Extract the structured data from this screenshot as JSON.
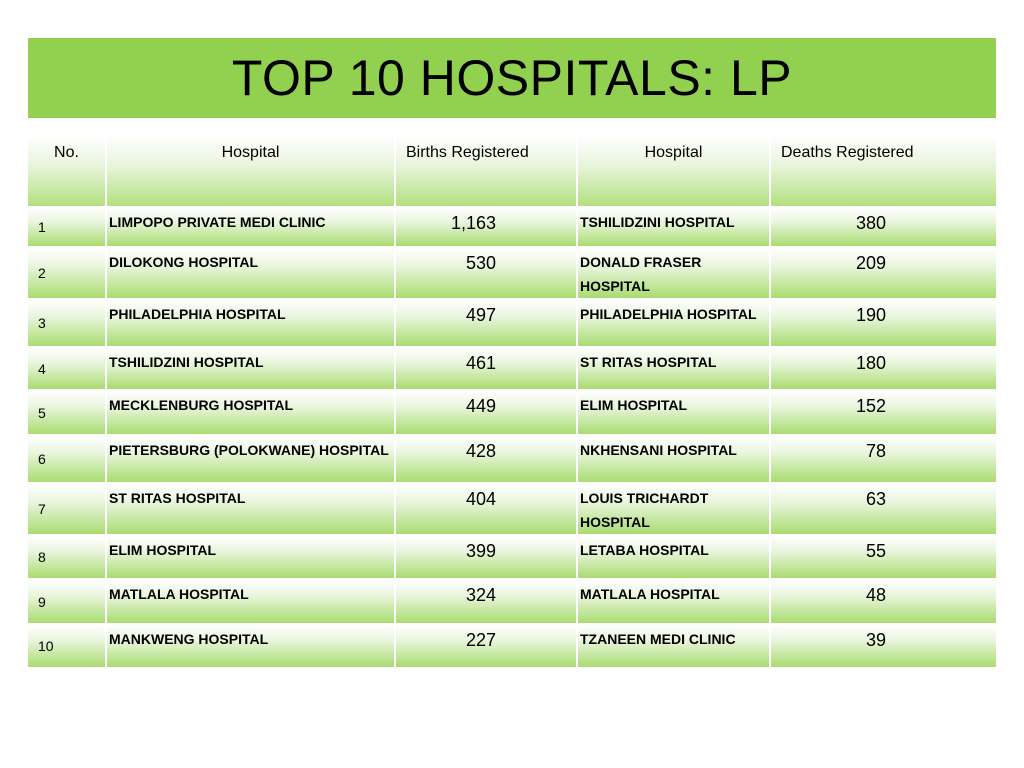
{
  "title": "TOP 10 HOSPITALS: LP",
  "colors": {
    "title_bar": "#92d050",
    "row_gradient_bottom": "#a9dc70"
  },
  "table": {
    "headers": [
      "No.",
      "Hospital",
      "Births Registered",
      "Hospital",
      "Deaths Registered"
    ],
    "rows": [
      {
        "no": "1",
        "birth_hospital": "LIMPOPO PRIVATE MEDI CLINIC",
        "births": "1,163",
        "death_hospital": "TSHILIDZINI HOSPITAL",
        "deaths": "380"
      },
      {
        "no": "2",
        "birth_hospital": "DILOKONG HOSPITAL",
        "births": "530",
        "death_hospital": "DONALD FRASER HOSPITAL",
        "deaths": "209"
      },
      {
        "no": "3",
        "birth_hospital": "PHILADELPHIA HOSPITAL",
        "births": "497",
        "death_hospital": "PHILADELPHIA HOSPITAL",
        "deaths": "190"
      },
      {
        "no": "4",
        "birth_hospital": "TSHILIDZINI HOSPITAL",
        "births": "461",
        "death_hospital": "ST RITAS HOSPITAL",
        "deaths": "180"
      },
      {
        "no": "5",
        "birth_hospital": "MECKLENBURG HOSPITAL",
        "births": "449",
        "death_hospital": "ELIM HOSPITAL",
        "deaths": "152"
      },
      {
        "no": "6",
        "birth_hospital": "PIETERSBURG (POLOKWANE) HOSPITAL",
        "births": "428",
        "death_hospital": "NKHENSANI HOSPITAL",
        "deaths": "78"
      },
      {
        "no": "7",
        "birth_hospital": "ST RITAS HOSPITAL",
        "births": "404",
        "death_hospital": "LOUIS TRICHARDT HOSPITAL",
        "deaths": "63"
      },
      {
        "no": "8",
        "birth_hospital": "ELIM HOSPITAL",
        "births": "399",
        "death_hospital": "LETABA HOSPITAL",
        "deaths": "55"
      },
      {
        "no": "9",
        "birth_hospital": "MATLALA HOSPITAL",
        "births": "324",
        "death_hospital": "MATLALA HOSPITAL",
        "deaths": "48"
      },
      {
        "no": "10",
        "birth_hospital": "MANKWENG HOSPITAL",
        "births": "227",
        "death_hospital": "TZANEEN MEDI CLINIC",
        "deaths": "39"
      }
    ]
  }
}
